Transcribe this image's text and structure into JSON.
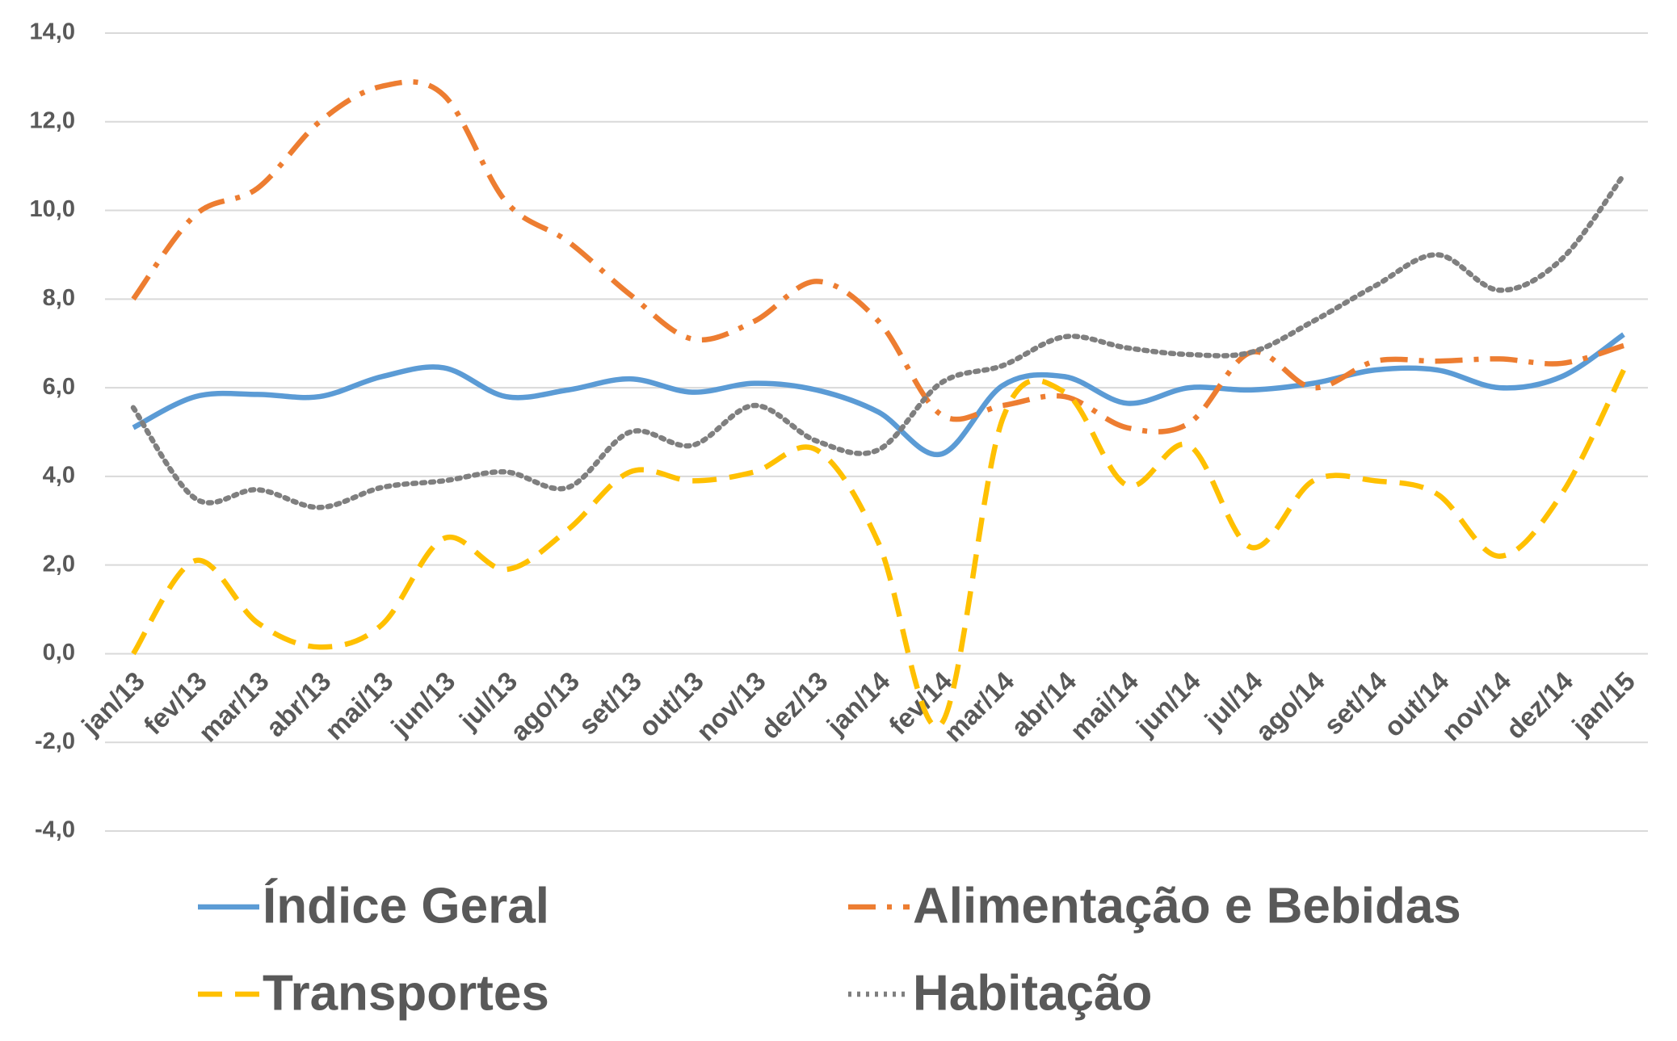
{
  "chart_data": {
    "type": "line",
    "categories": [
      "jan/13",
      "fev/13",
      "mar/13",
      "abr/13",
      "mai/13",
      "jun/13",
      "jul/13",
      "ago/13",
      "set/13",
      "out/13",
      "nov/13",
      "dez/13",
      "jan/14",
      "fev/14",
      "mar/14",
      "abr/14",
      "mai/14",
      "jun/14",
      "jul/14",
      "ago/14",
      "set/14",
      "out/14",
      "nov/14",
      "dez/14",
      "jan/15"
    ],
    "series": [
      {
        "name": "Índice Geral",
        "color": "#5b9bd5",
        "dash": "solid",
        "values": [
          5.1,
          5.8,
          5.85,
          5.8,
          6.25,
          6.45,
          5.8,
          5.95,
          6.2,
          5.9,
          6.1,
          5.95,
          5.45,
          4.5,
          6.05,
          6.25,
          5.65,
          6.0,
          5.95,
          6.1,
          6.4,
          6.4,
          6.0,
          6.25,
          7.2
        ]
      },
      {
        "name": "Alimentação e Bebidas",
        "color": "#ed7d31",
        "dash": "dash-dot",
        "values": [
          8.0,
          9.9,
          10.5,
          12.0,
          12.8,
          12.6,
          10.2,
          9.3,
          8.1,
          7.1,
          7.5,
          8.4,
          7.5,
          5.4,
          5.6,
          5.8,
          5.1,
          5.2,
          6.8,
          6.0,
          6.6,
          6.6,
          6.65,
          6.55,
          6.95
        ]
      },
      {
        "name": "Transportes",
        "color": "#ffc000",
        "dash": "dash",
        "values": [
          0.0,
          2.1,
          0.7,
          0.15,
          0.65,
          2.6,
          1.9,
          2.8,
          4.1,
          3.9,
          4.1,
          4.6,
          2.5,
          -1.6,
          5.3,
          5.9,
          3.8,
          4.7,
          2.4,
          3.9,
          3.9,
          3.6,
          2.2,
          3.6,
          6.4
        ]
      },
      {
        "name": "Habitação",
        "color": "#7f7f7f",
        "dash": "dot",
        "values": [
          5.55,
          3.5,
          3.7,
          3.3,
          3.75,
          3.9,
          4.1,
          3.75,
          5.0,
          4.7,
          5.6,
          4.8,
          4.6,
          6.1,
          6.5,
          7.15,
          6.9,
          6.75,
          6.8,
          7.5,
          8.3,
          9.0,
          8.2,
          8.9,
          10.8
        ]
      }
    ],
    "ylim": [
      -4,
      14
    ],
    "yticks": [
      {
        "value": -4,
        "label": "-4,0"
      },
      {
        "value": -2,
        "label": "-2,0"
      },
      {
        "value": 0,
        "label": "0,0"
      },
      {
        "value": 2,
        "label": "2,0"
      },
      {
        "value": 4,
        "label": "4,0"
      },
      {
        "value": 6,
        "label": "6,0"
      },
      {
        "value": 8,
        "label": "8,0"
      },
      {
        "value": 10,
        "label": "10,0"
      },
      {
        "value": 12,
        "label": "12,0"
      },
      {
        "value": 14,
        "label": "14,0"
      }
    ],
    "grid": true,
    "legend": "bottom"
  }
}
